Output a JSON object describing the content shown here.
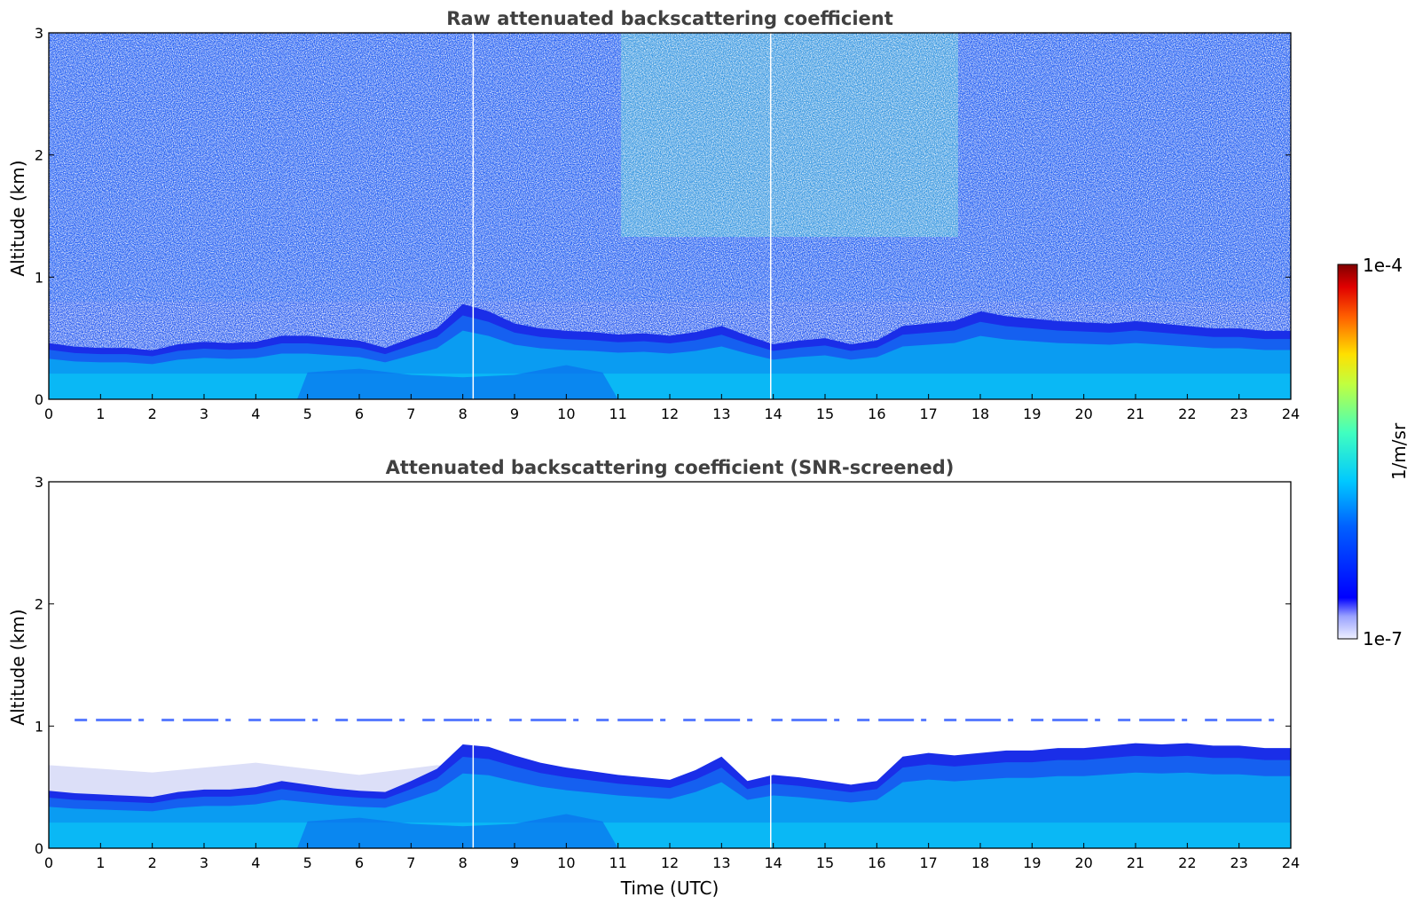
{
  "chart_data": [
    {
      "type": "heatmap",
      "title": "Raw attenuated backscattering coefficient",
      "xlabel": "",
      "ylabel": "Altitude (km)",
      "xlim": [
        0,
        24
      ],
      "ylim": [
        0,
        3
      ],
      "xticks": [
        "0",
        "1",
        "2",
        "3",
        "4",
        "5",
        "6",
        "7",
        "8",
        "9",
        "10",
        "11",
        "12",
        "13",
        "14",
        "15",
        "16",
        "17",
        "18",
        "19",
        "20",
        "21",
        "22",
        "23",
        "24"
      ],
      "yticks": [
        "0",
        "1",
        "2",
        "3"
      ],
      "boundary_layer_top_km": [
        [
          0,
          0.46
        ],
        [
          0.5,
          0.43
        ],
        [
          1,
          0.42
        ],
        [
          1.5,
          0.42
        ],
        [
          2,
          0.4
        ],
        [
          2.5,
          0.45
        ],
        [
          3,
          0.47
        ],
        [
          3.5,
          0.46
        ],
        [
          4,
          0.47
        ],
        [
          4.5,
          0.52
        ],
        [
          5,
          0.52
        ],
        [
          5.5,
          0.5
        ],
        [
          6,
          0.48
        ],
        [
          6.5,
          0.42
        ],
        [
          7,
          0.5
        ],
        [
          7.5,
          0.58
        ],
        [
          8,
          0.78
        ],
        [
          8.5,
          0.72
        ],
        [
          9,
          0.62
        ],
        [
          9.5,
          0.58
        ],
        [
          10,
          0.56
        ],
        [
          10.5,
          0.55
        ],
        [
          11,
          0.53
        ],
        [
          11.5,
          0.54
        ],
        [
          12,
          0.52
        ],
        [
          12.5,
          0.55
        ],
        [
          13,
          0.6
        ],
        [
          13.5,
          0.52
        ],
        [
          14,
          0.45
        ],
        [
          14.5,
          0.48
        ],
        [
          15,
          0.5
        ],
        [
          15.5,
          0.45
        ],
        [
          16,
          0.48
        ],
        [
          16.5,
          0.6
        ],
        [
          17,
          0.62
        ],
        [
          17.5,
          0.64
        ],
        [
          18,
          0.72
        ],
        [
          18.5,
          0.68
        ],
        [
          19,
          0.66
        ],
        [
          19.5,
          0.64
        ],
        [
          20,
          0.63
        ],
        [
          20.5,
          0.62
        ],
        [
          21,
          0.64
        ],
        [
          21.5,
          0.62
        ],
        [
          22,
          0.6
        ],
        [
          22.5,
          0.58
        ],
        [
          23,
          0.58
        ],
        [
          23.5,
          0.56
        ],
        [
          24,
          0.56
        ]
      ],
      "data_gaps_utc": [
        8.2,
        13.95
      ],
      "noise": "high above boundary layer, strongest around 12-16 UTC aloft"
    },
    {
      "type": "heatmap",
      "title": "Attenuated backscattering coefficient (SNR-screened)",
      "xlabel": "Time (UTC)",
      "ylabel": "Altitude (km)",
      "xlim": [
        0,
        24
      ],
      "ylim": [
        0,
        3
      ],
      "xticks": [
        "0",
        "1",
        "2",
        "3",
        "4",
        "5",
        "6",
        "7",
        "8",
        "9",
        "10",
        "11",
        "12",
        "13",
        "14",
        "15",
        "16",
        "17",
        "18",
        "19",
        "20",
        "21",
        "22",
        "23",
        "24"
      ],
      "yticks": [
        "0",
        "1",
        "2",
        "3"
      ],
      "boundary_layer_top_km": [
        [
          0,
          0.47
        ],
        [
          0.5,
          0.45
        ],
        [
          1,
          0.44
        ],
        [
          1.5,
          0.43
        ],
        [
          2,
          0.42
        ],
        [
          2.5,
          0.46
        ],
        [
          3,
          0.48
        ],
        [
          3.5,
          0.48
        ],
        [
          4,
          0.5
        ],
        [
          4.5,
          0.55
        ],
        [
          5,
          0.52
        ],
        [
          5.5,
          0.49
        ],
        [
          6,
          0.47
        ],
        [
          6.5,
          0.46
        ],
        [
          7,
          0.55
        ],
        [
          7.5,
          0.65
        ],
        [
          8,
          0.85
        ],
        [
          8.5,
          0.83
        ],
        [
          9,
          0.76
        ],
        [
          9.5,
          0.7
        ],
        [
          10,
          0.66
        ],
        [
          10.5,
          0.63
        ],
        [
          11,
          0.6
        ],
        [
          11.5,
          0.58
        ],
        [
          12,
          0.56
        ],
        [
          12.5,
          0.64
        ],
        [
          13,
          0.75
        ],
        [
          13.5,
          0.55
        ],
        [
          14,
          0.6
        ],
        [
          14.5,
          0.58
        ],
        [
          15,
          0.55
        ],
        [
          15.5,
          0.52
        ],
        [
          16,
          0.55
        ],
        [
          16.5,
          0.75
        ],
        [
          17,
          0.78
        ],
        [
          17.5,
          0.76
        ],
        [
          18,
          0.78
        ],
        [
          18.5,
          0.8
        ],
        [
          19,
          0.8
        ],
        [
          19.5,
          0.82
        ],
        [
          20,
          0.82
        ],
        [
          20.5,
          0.84
        ],
        [
          21,
          0.86
        ],
        [
          21.5,
          0.85
        ],
        [
          22,
          0.86
        ],
        [
          22.5,
          0.84
        ],
        [
          23,
          0.84
        ],
        [
          23.5,
          0.82
        ],
        [
          24,
          0.82
        ]
      ],
      "residual_layer_top_km": [
        [
          0,
          0.68
        ],
        [
          2,
          0.62
        ],
        [
          4,
          0.7
        ],
        [
          6,
          0.6
        ],
        [
          7.5,
          0.68
        ]
      ],
      "artifact_line_km": 1.05,
      "data_gaps_utc": [
        8.2,
        13.95
      ]
    }
  ],
  "colorbar": {
    "label": "1/m/sr",
    "min_label": "1e-7",
    "max_label": "1e-4",
    "scale": "log",
    "colormap": "jet"
  },
  "colors": {
    "title": "#404040",
    "background": "#ffffff"
  }
}
